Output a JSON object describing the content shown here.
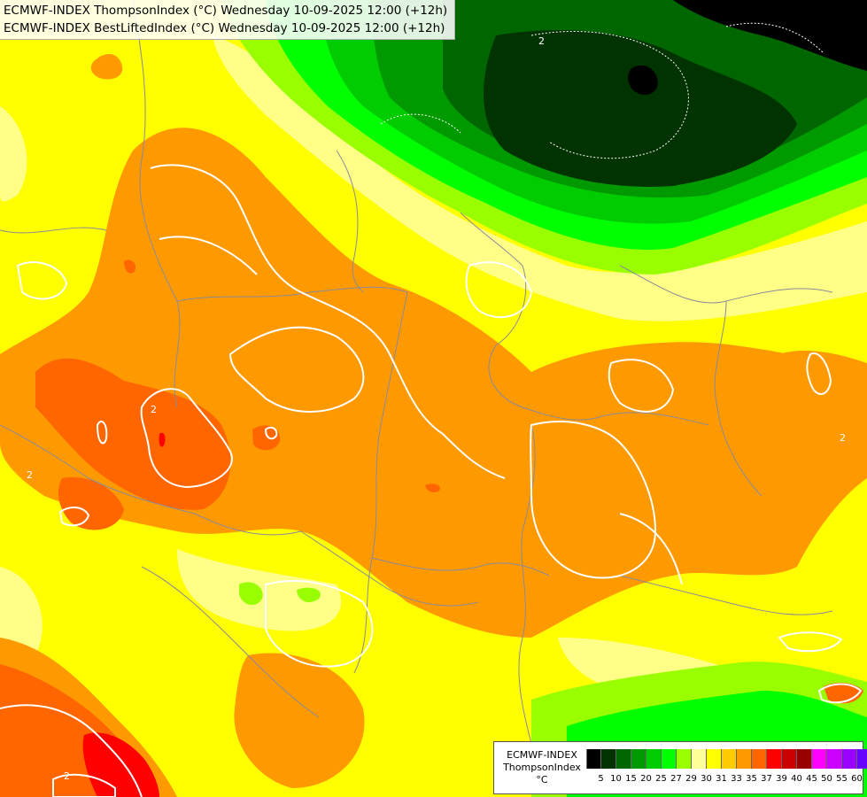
{
  "header": {
    "line1": "ECMWF-INDEX ThompsonIndex (°C) Wednesday 10-09-2025 12:00 (+12h)",
    "line2": "ECMWF-INDEX BestLiftedIndex (°C) Wednesday 10-09-2025 12:00 (+12h)"
  },
  "legend": {
    "model": "ECMWF-INDEX",
    "parameter": "ThompsonIndex",
    "unit": "°C",
    "colors": [
      "#000000",
      "#000000",
      "#000000",
      "#003300",
      "#006600",
      "#009900",
      "#00cc00",
      "#00ff00",
      "#99ff00",
      "#ffff99",
      "#ffff00",
      "#ffcc00",
      "#ff9900",
      "#ff6600",
      "#ff0000",
      "#cc0000",
      "#990000",
      "#ff00ff",
      "#cc00ff",
      "#9900ff",
      "#6600ff",
      "#3333ff",
      "#0000ff"
    ],
    "ticks": [
      "5",
      "10",
      "15",
      "20",
      "25",
      "27",
      "29",
      "30",
      "31",
      "33",
      "35",
      "37",
      "39",
      "40",
      "45",
      "50",
      "55",
      "60"
    ]
  },
  "map_labels": [
    "2",
    "2",
    "2",
    "2",
    "2"
  ]
}
